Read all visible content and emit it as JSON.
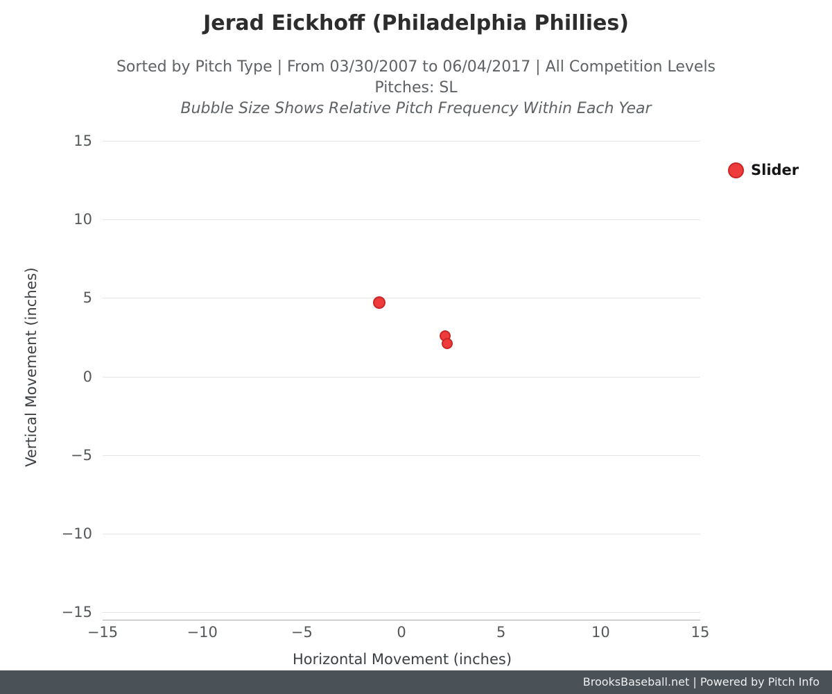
{
  "page": {
    "title": "Jerad Eickhoff (Philadelphia Phillies)",
    "subtitle_range": "Sorted by Pitch Type | From 03/30/2007 to 06/04/2017 | All Competition Levels",
    "subtitle_pitches": "Pitches: SL",
    "subtitle_note": "Bubble Size Shows Relative Pitch Frequency Within Each Year",
    "footer": "BrooksBaseball.net | Powered by Pitch Info"
  },
  "chart_data": {
    "type": "scatter",
    "title": "Jerad Eickhoff (Philadelphia Phillies)",
    "xlabel": "Horizontal Movement (inches)",
    "ylabel": "Vertical Movement (inches)",
    "xlim": [
      -15,
      15
    ],
    "ylim": [
      -15,
      15
    ],
    "xticks": [
      -15,
      -10,
      -5,
      0,
      5,
      10,
      15
    ],
    "yticks": [
      -15,
      -10,
      -5,
      0,
      5,
      10,
      15
    ],
    "grid": "horizontal-only",
    "legend": {
      "position": "top-right",
      "entries": [
        {
          "label": "Slider",
          "color": "#ee3c3c",
          "stroke": "#c92626"
        }
      ]
    },
    "series": [
      {
        "name": "Slider",
        "color": "#ee3c3c",
        "stroke": "#c92626",
        "points": [
          {
            "x": -1.1,
            "y": 4.7,
            "r": 9
          },
          {
            "x": 2.2,
            "y": 2.6,
            "r": 8
          },
          {
            "x": 2.3,
            "y": 2.1,
            "r": 8
          }
        ]
      }
    ]
  },
  "colors": {
    "bubble_fill": "#ee3c3c",
    "bubble_stroke": "#c92626",
    "gridline": "#e4e4e4",
    "footer_bg": "#4a5157"
  }
}
